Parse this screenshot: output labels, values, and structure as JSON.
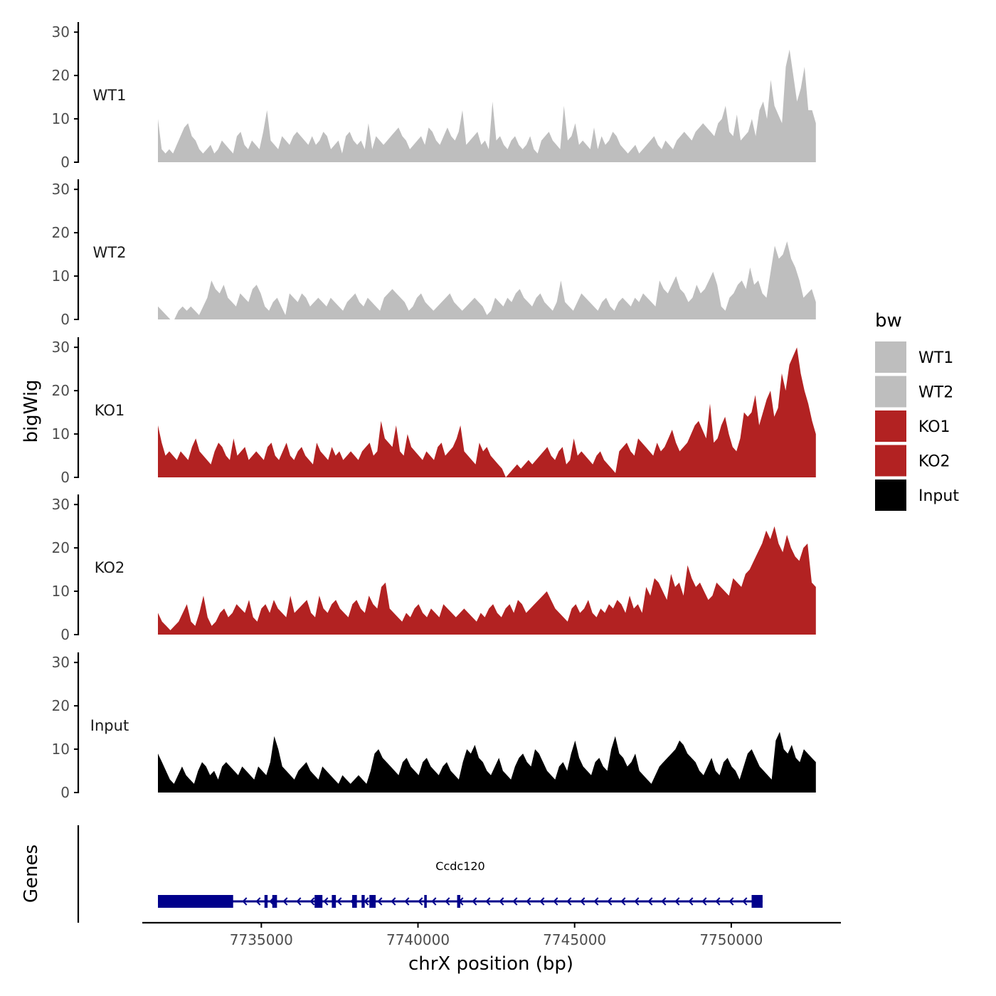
{
  "chart_data": {
    "type": "area",
    "ylabel": "bigWig",
    "genes_label": "Genes",
    "xlabel": "chrX position (bp)",
    "xlim": [
      7731200,
      7753500
    ],
    "ylim": [
      0,
      32
    ],
    "y_ticks": [
      "0",
      "10",
      "20",
      "30"
    ],
    "x_ticks": [
      {
        "value": 7735000,
        "label": "7735000"
      },
      {
        "value": 7740000,
        "label": "7740000"
      },
      {
        "value": 7745000,
        "label": "7745000"
      },
      {
        "value": 7750000,
        "label": "7750000"
      }
    ],
    "track_start": 7731700,
    "track_end": 7752700,
    "series": [
      {
        "name": "WT1",
        "color": "#bebebe",
        "values": [
          10,
          3,
          2,
          3,
          2,
          4,
          6,
          8,
          9,
          6,
          5,
          3,
          2,
          3,
          4,
          2,
          3,
          5,
          4,
          3,
          2,
          6,
          7,
          4,
          3,
          5,
          4,
          3,
          7,
          12,
          5,
          4,
          3,
          6,
          5,
          4,
          6,
          7,
          6,
          5,
          4,
          6,
          4,
          5,
          7,
          6,
          3,
          4,
          5,
          2,
          6,
          7,
          5,
          4,
          5,
          3,
          9,
          3,
          6,
          5,
          4,
          5,
          6,
          7,
          8,
          6,
          5,
          3,
          4,
          5,
          6,
          4,
          8,
          7,
          5,
          4,
          6,
          8,
          6,
          5,
          7,
          12,
          4,
          5,
          6,
          7,
          4,
          5,
          3,
          14,
          5,
          6,
          4,
          3,
          5,
          6,
          4,
          3,
          4,
          6,
          3,
          2,
          5,
          6,
          7,
          5,
          4,
          3,
          13,
          5,
          6,
          9,
          4,
          5,
          4,
          3,
          8,
          3,
          6,
          4,
          5,
          7,
          6,
          4,
          3,
          2,
          3,
          4,
          2,
          3,
          4,
          5,
          6,
          4,
          3,
          5,
          4,
          3,
          5,
          6,
          7,
          6,
          5,
          7,
          8,
          9,
          8,
          7,
          6,
          9,
          10,
          13,
          7,
          6,
          11,
          5,
          6,
          7,
          10,
          6,
          12,
          14,
          10,
          19,
          13,
          11,
          9,
          22,
          26,
          20,
          14,
          17,
          22,
          12,
          12,
          9
        ]
      },
      {
        "name": "WT2",
        "color": "#bebebe",
        "values": [
          3,
          2,
          1,
          0,
          0,
          2,
          3,
          2,
          3,
          2,
          1,
          3,
          5,
          9,
          7,
          6,
          8,
          5,
          4,
          3,
          6,
          5,
          4,
          7,
          8,
          6,
          3,
          2,
          4,
          5,
          3,
          1,
          6,
          5,
          4,
          6,
          5,
          3,
          4,
          5,
          4,
          3,
          5,
          4,
          3,
          2,
          4,
          5,
          6,
          4,
          3,
          5,
          4,
          3,
          2,
          5,
          6,
          7,
          6,
          5,
          4,
          2,
          3,
          5,
          6,
          4,
          3,
          2,
          3,
          4,
          5,
          6,
          4,
          3,
          2,
          3,
          4,
          5,
          4,
          3,
          1,
          2,
          5,
          4,
          3,
          5,
          4,
          6,
          7,
          5,
          4,
          3,
          5,
          6,
          4,
          3,
          2,
          4,
          9,
          4,
          3,
          2,
          4,
          6,
          5,
          4,
          3,
          2,
          4,
          5,
          3,
          2,
          4,
          5,
          4,
          3,
          5,
          4,
          6,
          5,
          4,
          3,
          9,
          7,
          6,
          8,
          10,
          7,
          6,
          4,
          5,
          8,
          6,
          7,
          9,
          11,
          8,
          3,
          2,
          5,
          6,
          8,
          9,
          7,
          12,
          8,
          9,
          6,
          5,
          11,
          17,
          14,
          15,
          18,
          14,
          12,
          9,
          5,
          6,
          7,
          4
        ]
      },
      {
        "name": "KO1",
        "color": "#b22222",
        "values": [
          12,
          8,
          5,
          6,
          5,
          4,
          6,
          5,
          4,
          7,
          9,
          6,
          5,
          4,
          3,
          6,
          8,
          7,
          5,
          4,
          9,
          5,
          6,
          7,
          4,
          5,
          6,
          5,
          4,
          7,
          8,
          5,
          4,
          6,
          8,
          5,
          4,
          6,
          7,
          5,
          4,
          3,
          8,
          6,
          5,
          4,
          7,
          5,
          6,
          4,
          5,
          6,
          5,
          4,
          6,
          7,
          8,
          5,
          6,
          13,
          9,
          8,
          7,
          12,
          6,
          5,
          10,
          7,
          6,
          5,
          4,
          6,
          5,
          4,
          7,
          8,
          5,
          6,
          7,
          9,
          12,
          6,
          5,
          4,
          3,
          8,
          6,
          7,
          5,
          4,
          3,
          2,
          0,
          1,
          2,
          3,
          2,
          3,
          4,
          3,
          4,
          5,
          6,
          7,
          5,
          4,
          6,
          7,
          3,
          4,
          9,
          5,
          6,
          5,
          4,
          3,
          5,
          6,
          4,
          3,
          2,
          1,
          6,
          7,
          8,
          6,
          5,
          9,
          8,
          7,
          6,
          5,
          8,
          6,
          7,
          9,
          11,
          8,
          6,
          7,
          8,
          10,
          12,
          13,
          11,
          9,
          17,
          8,
          9,
          12,
          14,
          10,
          7,
          6,
          9,
          15,
          14,
          15,
          19,
          12,
          15,
          18,
          20,
          14,
          16,
          24,
          20,
          26,
          28,
          30,
          24,
          20,
          17,
          13,
          10
        ]
      },
      {
        "name": "KO2",
        "color": "#b22222",
        "values": [
          5,
          3,
          2,
          1,
          2,
          3,
          5,
          7,
          3,
          2,
          5,
          9,
          4,
          2,
          3,
          5,
          6,
          4,
          5,
          7,
          6,
          5,
          8,
          4,
          3,
          6,
          7,
          5,
          8,
          6,
          5,
          4,
          9,
          5,
          6,
          7,
          8,
          5,
          4,
          9,
          6,
          5,
          7,
          8,
          6,
          5,
          4,
          7,
          8,
          6,
          5,
          9,
          7,
          6,
          11,
          12,
          6,
          5,
          4,
          3,
          5,
          4,
          6,
          7,
          5,
          4,
          6,
          5,
          4,
          7,
          6,
          5,
          4,
          5,
          6,
          5,
          4,
          3,
          5,
          4,
          6,
          7,
          5,
          4,
          6,
          7,
          5,
          8,
          7,
          5,
          6,
          7,
          8,
          9,
          10,
          8,
          6,
          5,
          4,
          3,
          6,
          7,
          5,
          6,
          8,
          5,
          4,
          6,
          5,
          7,
          6,
          8,
          7,
          5,
          9,
          6,
          7,
          5,
          11,
          9,
          13,
          12,
          10,
          8,
          14,
          11,
          12,
          9,
          16,
          13,
          11,
          12,
          10,
          8,
          9,
          12,
          11,
          10,
          9,
          13,
          12,
          11,
          14,
          15,
          17,
          19,
          21,
          24,
          22,
          25,
          21,
          19,
          23,
          20,
          18,
          17,
          20,
          21,
          12,
          11
        ]
      },
      {
        "name": "Input",
        "color": "#000000",
        "values": [
          9,
          7,
          5,
          3,
          2,
          4,
          6,
          4,
          3,
          2,
          5,
          7,
          6,
          4,
          5,
          3,
          6,
          7,
          6,
          5,
          4,
          6,
          5,
          4,
          3,
          6,
          5,
          4,
          7,
          13,
          10,
          6,
          5,
          4,
          3,
          5,
          6,
          7,
          5,
          4,
          3,
          6,
          5,
          4,
          3,
          2,
          4,
          3,
          2,
          3,
          4,
          3,
          2,
          5,
          9,
          10,
          8,
          7,
          6,
          5,
          4,
          7,
          8,
          6,
          5,
          4,
          7,
          8,
          6,
          5,
          4,
          6,
          7,
          5,
          4,
          3,
          7,
          10,
          9,
          11,
          8,
          7,
          5,
          4,
          6,
          8,
          5,
          4,
          3,
          6,
          8,
          9,
          7,
          6,
          10,
          9,
          7,
          5,
          4,
          3,
          6,
          7,
          5,
          9,
          12,
          8,
          6,
          5,
          4,
          7,
          8,
          6,
          5,
          10,
          13,
          9,
          8,
          6,
          7,
          9,
          5,
          4,
          3,
          2,
          4,
          6,
          7,
          8,
          9,
          10,
          12,
          11,
          9,
          8,
          7,
          5,
          4,
          6,
          8,
          5,
          4,
          7,
          8,
          6,
          5,
          3,
          6,
          9,
          10,
          8,
          6,
          5,
          4,
          3,
          12,
          14,
          10,
          9,
          11,
          8,
          7,
          10,
          9,
          8,
          7
        ]
      }
    ],
    "legend": {
      "title": "bw",
      "placement": "right",
      "items": [
        {
          "label": "WT1",
          "color": "#bebebe"
        },
        {
          "label": "WT2",
          "color": "#bebebe"
        },
        {
          "label": "KO1",
          "color": "#b22222"
        },
        {
          "label": "KO2",
          "color": "#b22222"
        },
        {
          "label": "Input",
          "color": "#000000"
        }
      ]
    },
    "gene": {
      "name": "Ccdc120",
      "color": "#00008b",
      "strand": "-",
      "start": 7731700,
      "end": 7751000,
      "exons": [
        [
          7731700,
          7734100
        ],
        [
          7735100,
          7735200
        ],
        [
          7735350,
          7735500
        ],
        [
          7736700,
          7736950
        ],
        [
          7737250,
          7737380
        ],
        [
          7737900,
          7738050
        ],
        [
          7738200,
          7738300
        ],
        [
          7738450,
          7738650
        ],
        [
          7740200,
          7740280
        ],
        [
          7741250,
          7741350
        ],
        [
          7750650,
          7751000
        ]
      ]
    }
  }
}
